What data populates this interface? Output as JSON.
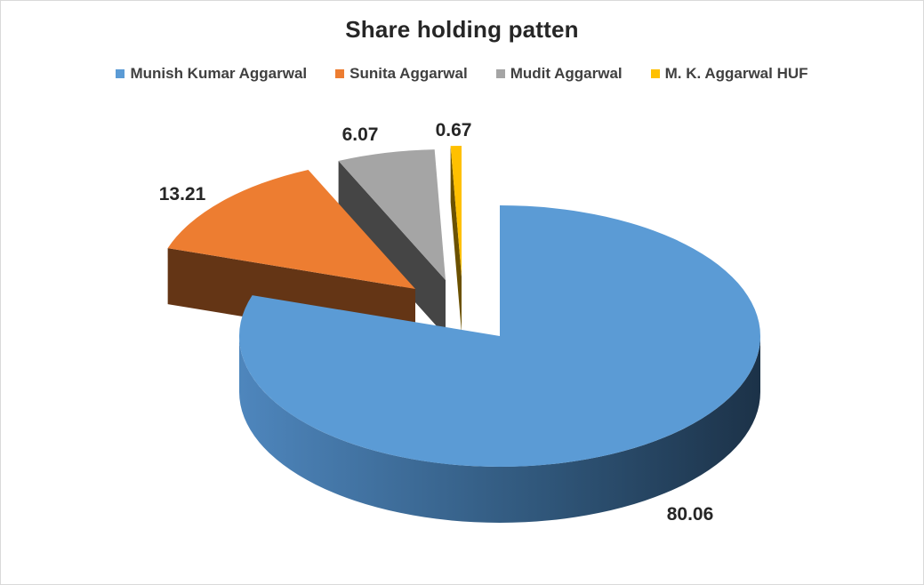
{
  "chart_data": {
    "type": "pie",
    "title": "Share holding patten",
    "categories": [
      "Munish Kumar Aggarwal",
      "Sunita Aggarwal",
      "Mudit Aggarwal",
      "M. K. Aggarwal HUF"
    ],
    "values": [
      80.06,
      13.21,
      6.07,
      0.67
    ],
    "data_labels": [
      "80.06",
      "13.21",
      "6.07",
      "0.67"
    ],
    "colors": [
      "#5b9bd5",
      "#ed7d31",
      "#a5a5a5",
      "#ffc000"
    ],
    "legend_position": "top",
    "style": "3d-exploded"
  }
}
